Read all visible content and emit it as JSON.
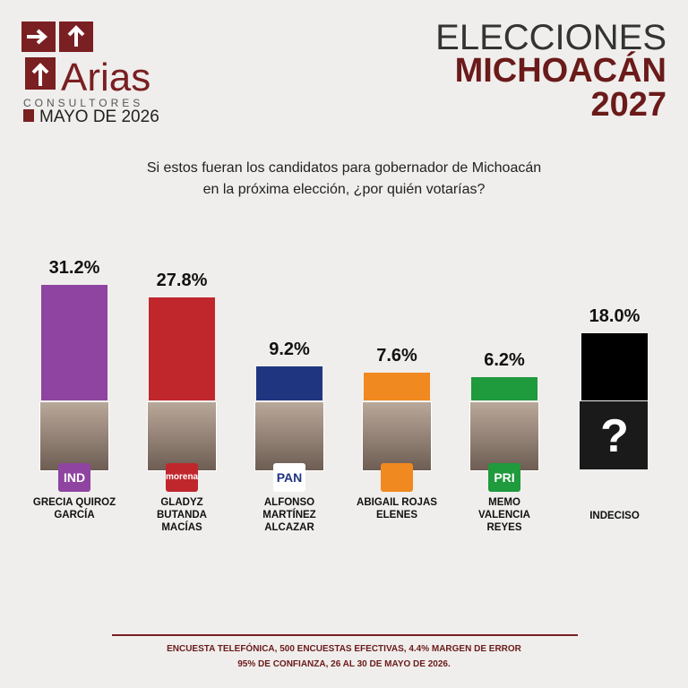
{
  "header": {
    "brand": "Arias",
    "brand_sub": "CONSULTORES",
    "date": "MAYO DE 2026",
    "title_line1": "ELECCIONES",
    "title_line2": "MICHOACÁN",
    "title_line3": "2027"
  },
  "chart_data": {
    "type": "bar",
    "title": "Si estos fueran los candidatos para gobernador de Michoacán en la próxima elección, ¿por quién votarías?",
    "categories": [
      "GRECIA QUIROZ GARCÍA",
      "GLADYZ BUTANDA MACÍAS",
      "ALFONSO MARTÍNEZ ALCAZAR",
      "ABIGAIL ROJAS ELENES",
      "MEMO VALENCIA REYES",
      "INDECISO"
    ],
    "values": [
      31.2,
      27.8,
      9.2,
      7.6,
      6.2,
      18.0
    ],
    "value_labels": [
      "31.2%",
      "27.8%",
      "9.2%",
      "7.6%",
      "6.2%",
      "18.0%"
    ],
    "colors": [
      "#8e44a0",
      "#c0272d",
      "#1f3580",
      "#f0891f",
      "#1f9a3c",
      "#000000"
    ],
    "badges": [
      "IND",
      "morena",
      "PAN",
      null,
      "PRI",
      "?"
    ]
  },
  "footer": {
    "lines": [
      "ENCUESTA TELEFÓNICA, 500 ENCUESTAS EFECTIVAS, 4.4%  MARGEN DE ERROR",
      "95% DE CONFIANZA, 26 AL 30 DE MAYO DE 2026."
    ]
  }
}
